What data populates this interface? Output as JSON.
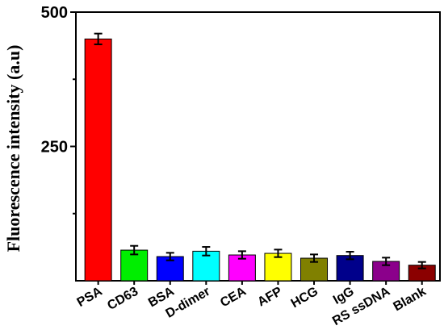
{
  "chart_data": {
    "type": "bar",
    "categories": [
      "PSA",
      "CD63",
      "BSA",
      "D-dimer",
      "CEA",
      "AFP",
      "HCG",
      "IgG",
      "RS ssDNA",
      "Blank"
    ],
    "values": [
      450,
      57,
      45,
      55,
      48,
      51,
      42,
      47,
      36,
      29
    ],
    "errors": [
      10,
      8,
      7,
      8,
      7,
      7,
      7,
      7,
      7,
      6
    ],
    "colors": [
      "#ff0000",
      "#00ee00",
      "#0000ff",
      "#00ffff",
      "#ff00ff",
      "#ffff00",
      "#808000",
      "#00008b",
      "#8b008b",
      "#8b0000"
    ],
    "ylabel": "Fluorescence intensity (a.u)",
    "xlabel": "",
    "ylim": [
      0,
      500
    ],
    "ytick_labels": [
      "250",
      "500"
    ],
    "yticks_major": [
      250,
      500
    ],
    "yticks_minor": [
      125,
      375
    ],
    "grid": false,
    "legend": "none"
  }
}
